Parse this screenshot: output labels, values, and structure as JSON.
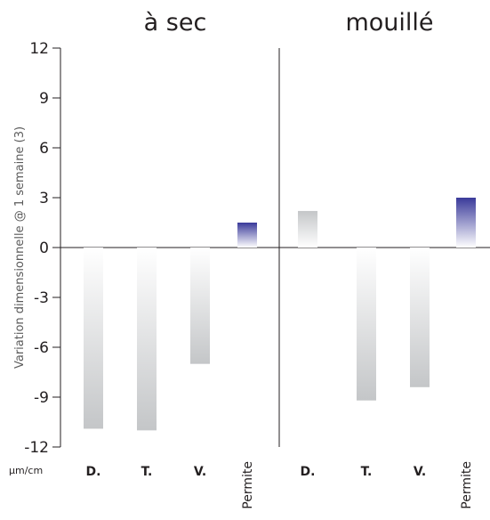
{
  "chart_data": {
    "type": "bar",
    "panels": [
      {
        "title": "à sec",
        "categories": [
          "D.",
          "T.",
          "V.",
          "Permite"
        ],
        "values": [
          -10.9,
          -11.0,
          -7.0,
          1.5
        ]
      },
      {
        "title": "mouillé",
        "categories": [
          "D.",
          "T.",
          "V.",
          "Permite"
        ],
        "values": [
          2.2,
          -9.2,
          -8.4,
          3.0
        ]
      }
    ],
    "ylabel": "Variation dimensionnelle @ 1 semaine (3)",
    "yunit": "µm/cm",
    "ylim": [
      -12,
      12
    ],
    "yticks": [
      12,
      9,
      6,
      3,
      0,
      -3,
      -6,
      -9,
      -12
    ],
    "grid": false,
    "colors": {
      "competitor_bar": "#c4c6c8",
      "permite_bar": "#3a3a9a",
      "axis": "#231f20"
    }
  }
}
